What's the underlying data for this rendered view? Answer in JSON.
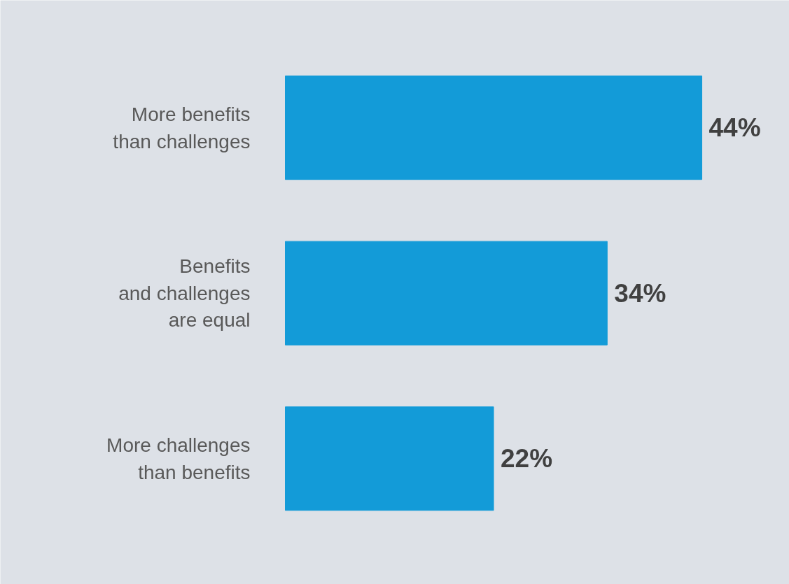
{
  "chart_data": {
    "type": "bar",
    "orientation": "horizontal",
    "categories": [
      "More benefits\nthan challenges",
      "Benefits\nand challenges\nare equal",
      "More challenges\nthan benefits"
    ],
    "values": [
      44,
      34,
      22
    ],
    "value_labels": [
      "44%",
      "34%",
      "22%"
    ],
    "color": "#139bd8",
    "grid": false
  }
}
